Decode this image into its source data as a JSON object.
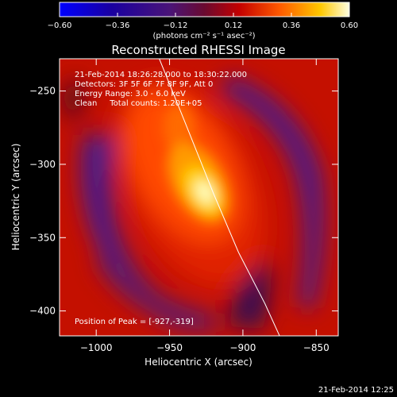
{
  "chart_data": {
    "type": "heatmap",
    "title": "Reconstructed RHESSI Image",
    "xlabel": "Heliocentric X (arcsec)",
    "ylabel": "Heliocentric Y (arcsec)",
    "xlim": [
      -1025,
      -835
    ],
    "ylim": [
      -417,
      -228
    ],
    "xticks": [
      -1000,
      -950,
      -900,
      -850
    ],
    "xtick_labels": [
      "−1000",
      "−950",
      "−900",
      "−850"
    ],
    "yticks": [
      -250,
      -300,
      -350,
      -400
    ],
    "ytick_labels": [
      "−250",
      "−300",
      "−350",
      "−400"
    ],
    "colorbar": {
      "range": [
        -0.6,
        0.6
      ],
      "ticks": [
        -0.6,
        -0.36,
        -0.12,
        0.12,
        0.36,
        0.6
      ],
      "tick_labels": [
        "−0.60",
        "−0.36",
        "−0.12",
        "0.12",
        "0.36",
        "0.60"
      ],
      "unit_label": "(photons cm⁻² s⁻¹ asec⁻²)"
    },
    "peak": {
      "x": -927,
      "y": -319,
      "value": 0.6
    },
    "info_lines": [
      "21-Feb-2014 18:26:28.000 to 18:30:22.000",
      "Detectors: 3F 5F 6F 7F 8F 9F, Att 0",
      "Energy Range: 3.0 - 6.0 keV",
      "Clean     Total counts: 1.20E+05"
    ],
    "peak_text": "Position of Peak = [-927,-319]",
    "limb_curve": [
      [
        -957,
        -228
      ],
      [
        -940,
        -270
      ],
      [
        -920,
        -320
      ],
      [
        -903,
        -360
      ],
      [
        -885,
        -395
      ],
      [
        -875,
        -417
      ]
    ],
    "footer": "21-Feb-2014 12:25",
    "colors": {
      "background": "#000000",
      "axes": "#ffffff",
      "limb": "#ffffff"
    }
  }
}
